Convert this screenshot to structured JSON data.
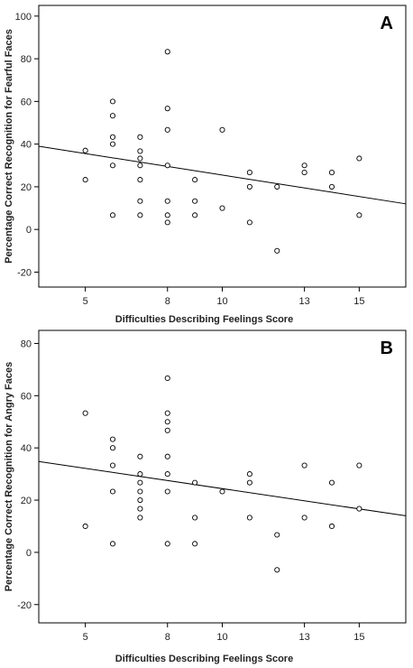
{
  "chart_data": [
    {
      "type": "scatter",
      "panel_label": "A",
      "xlabel": "Difficulties Describing Feelings Score",
      "ylabel": "Percentage Correct Recognition for Fearful Faces",
      "xlim": [
        3.3,
        16.7
      ],
      "ylim": [
        -27,
        105
      ],
      "xticks": [
        5,
        8,
        10,
        13,
        15
      ],
      "yticks": [
        -20,
        0,
        20,
        40,
        60,
        80,
        100
      ],
      "grid": false,
      "fit_line": {
        "x": [
          3.3,
          16.7
        ],
        "y": [
          39,
          12
        ]
      },
      "points": [
        {
          "x": 5,
          "y": 37
        },
        {
          "x": 5,
          "y": 23.3
        },
        {
          "x": 6,
          "y": 60
        },
        {
          "x": 6,
          "y": 53.3
        },
        {
          "x": 6,
          "y": 43.3
        },
        {
          "x": 6,
          "y": 40
        },
        {
          "x": 6,
          "y": 30
        },
        {
          "x": 6,
          "y": 6.7
        },
        {
          "x": 7,
          "y": 43.3
        },
        {
          "x": 7,
          "y": 36.7
        },
        {
          "x": 7,
          "y": 33.3
        },
        {
          "x": 7,
          "y": 30
        },
        {
          "x": 7,
          "y": 23.3
        },
        {
          "x": 7,
          "y": 13.3
        },
        {
          "x": 7,
          "y": 6.7
        },
        {
          "x": 8,
          "y": 83.3
        },
        {
          "x": 8,
          "y": 56.7
        },
        {
          "x": 8,
          "y": 46.7
        },
        {
          "x": 8,
          "y": 30
        },
        {
          "x": 8,
          "y": 13.3
        },
        {
          "x": 8,
          "y": 6.7
        },
        {
          "x": 8,
          "y": 3.3
        },
        {
          "x": 9,
          "y": 23.3
        },
        {
          "x": 9,
          "y": 13.3
        },
        {
          "x": 9,
          "y": 6.7
        },
        {
          "x": 10,
          "y": 46.7
        },
        {
          "x": 10,
          "y": 10
        },
        {
          "x": 11,
          "y": 26.7
        },
        {
          "x": 11,
          "y": 20
        },
        {
          "x": 11,
          "y": 3.3
        },
        {
          "x": 12,
          "y": 20
        },
        {
          "x": 12,
          "y": -10
        },
        {
          "x": 13,
          "y": 30
        },
        {
          "x": 13,
          "y": 26.7
        },
        {
          "x": 14,
          "y": 26.7
        },
        {
          "x": 14,
          "y": 20
        },
        {
          "x": 15,
          "y": 33.3
        },
        {
          "x": 15,
          "y": 6.7
        }
      ]
    },
    {
      "type": "scatter",
      "panel_label": "B",
      "xlabel": "Difficulties Describing Feelings Score",
      "ylabel": "Percentage Correct Recognition for Angry Faces",
      "xlim": [
        3.3,
        16.7
      ],
      "ylim": [
        -27,
        85
      ],
      "xticks": [
        5,
        8,
        10,
        13,
        15
      ],
      "yticks": [
        -20,
        0,
        20,
        40,
        60,
        80
      ],
      "grid": false,
      "fit_line": {
        "x": [
          3.3,
          16.7
        ],
        "y": [
          34.8,
          14
        ]
      },
      "points": [
        {
          "x": 5,
          "y": 53.3
        },
        {
          "x": 5,
          "y": 10
        },
        {
          "x": 6,
          "y": 43.3
        },
        {
          "x": 6,
          "y": 40
        },
        {
          "x": 6,
          "y": 33.3
        },
        {
          "x": 6,
          "y": 23.3
        },
        {
          "x": 6,
          "y": 3.3
        },
        {
          "x": 7,
          "y": 36.7
        },
        {
          "x": 7,
          "y": 30
        },
        {
          "x": 7,
          "y": 26.7
        },
        {
          "x": 7,
          "y": 23.3
        },
        {
          "x": 7,
          "y": 20
        },
        {
          "x": 7,
          "y": 16.7
        },
        {
          "x": 7,
          "y": 13.3
        },
        {
          "x": 8,
          "y": 66.7
        },
        {
          "x": 8,
          "y": 53.3
        },
        {
          "x": 8,
          "y": 50
        },
        {
          "x": 8,
          "y": 46.7
        },
        {
          "x": 8,
          "y": 36.7
        },
        {
          "x": 8,
          "y": 30
        },
        {
          "x": 8,
          "y": 23.3
        },
        {
          "x": 8,
          "y": 3.3
        },
        {
          "x": 9,
          "y": 26.7
        },
        {
          "x": 9,
          "y": 13.3
        },
        {
          "x": 9,
          "y": 3.3
        },
        {
          "x": 10,
          "y": 23.3
        },
        {
          "x": 11,
          "y": 30
        },
        {
          "x": 11,
          "y": 26.7
        },
        {
          "x": 11,
          "y": 13.3
        },
        {
          "x": 12,
          "y": 6.7
        },
        {
          "x": 12,
          "y": -6.7
        },
        {
          "x": 13,
          "y": 33.3
        },
        {
          "x": 13,
          "y": 13.3
        },
        {
          "x": 14,
          "y": 26.7
        },
        {
          "x": 14,
          "y": 10
        },
        {
          "x": 15,
          "y": 33.3
        },
        {
          "x": 15,
          "y": 16.7
        }
      ]
    }
  ]
}
